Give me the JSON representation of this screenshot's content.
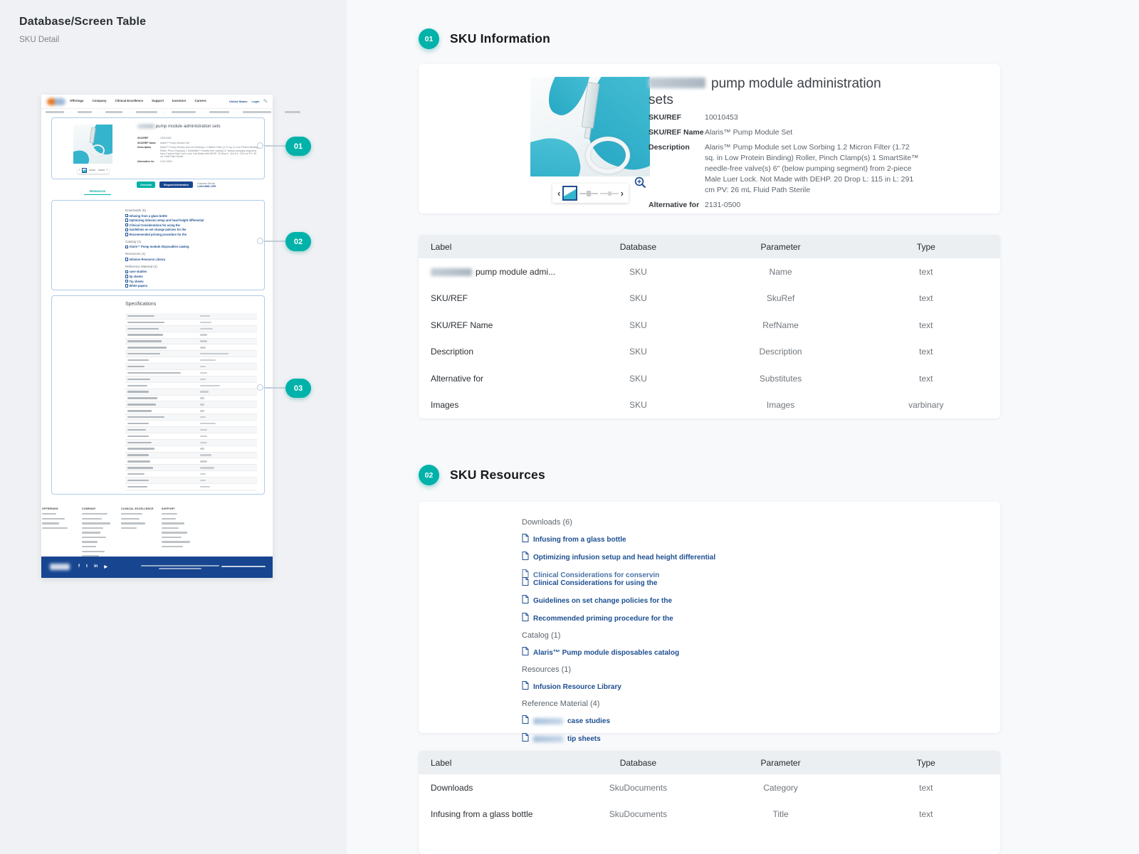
{
  "page": {
    "title": "Database/Screen Table",
    "subtitle": "SKU Detail"
  },
  "colors": {
    "teal": "#00b2a9",
    "link_blue": "#1d4f91",
    "footer_navy": "#17458f",
    "logo_orange": "#e87722",
    "table_header_bg": "#eceff2"
  },
  "callouts": [
    "01",
    "02",
    "03"
  ],
  "sections": [
    {
      "num": "01",
      "title": "SKU Information"
    },
    {
      "num": "02",
      "title": "SKU Resources"
    }
  ],
  "product": {
    "title_rest": "pump module administration sets",
    "fields": [
      {
        "label": "SKU/REF",
        "value": "10010453"
      },
      {
        "label": "SKU/REF Name",
        "value": "Alaris™ Pump Module Set"
      },
      {
        "label": "Description",
        "value": "Alaris™ Pump Module set Low Sorbing 1.2 Micron Filter (1.72 sq. in Low Protein Binding) Roller, Pinch Clamp(s) 1 SmartSite™ needle-free valve(s) 6\" (below pumping segment) from 2-piece Male Luer Lock. Not Made with DEHP. 20 Drop L: 115 in L: 291 cm PV: 26 mL Fluid Path Sterile"
      },
      {
        "label": "Alternative for",
        "value": "2131-0500"
      }
    ]
  },
  "table1": {
    "headers": [
      "Label",
      "Database",
      "Parameter",
      "Type"
    ],
    "rows": [
      {
        "label": "pump module admi...",
        "redacted": true,
        "database": "SKU",
        "parameter": "Name",
        "type": "text"
      },
      {
        "label": "SKU/REF",
        "database": "SKU",
        "parameter": "SkuRef",
        "type": "text"
      },
      {
        "label": "SKU/REF Name",
        "database": "SKU",
        "parameter": "RefName",
        "type": "text"
      },
      {
        "label": "Description",
        "database": "SKU",
        "parameter": "Description",
        "type": "text"
      },
      {
        "label": "Alternative for",
        "database": "SKU",
        "parameter": "Substitutes",
        "type": "text"
      },
      {
        "label": "Images",
        "database": "SKU",
        "parameter": "Images",
        "type": "varbinary"
      }
    ]
  },
  "resources": {
    "groups": [
      {
        "heading": "Downloads (6)",
        "items": [
          {
            "text": "Infusing from a glass bottle"
          },
          {
            "text": "Optimizing infusion setup and head height differential"
          },
          {
            "text": "Clinical Considerations for conservin",
            "overlap_top": true
          },
          {
            "text": "Clinical Considerations for using the"
          },
          {
            "text": "Guidelines on set change policies for the"
          },
          {
            "text": "Recommended priming procedure for the"
          }
        ]
      },
      {
        "heading": "Catalog (1)",
        "items": [
          {
            "text": "Alaris™ Pump module disposables catalog"
          }
        ]
      },
      {
        "heading": "Resources (1)",
        "items": [
          {
            "text": "Infusion Resource Library"
          }
        ]
      },
      {
        "heading": "Reference Material (4)",
        "items": [
          {
            "text": "case studies",
            "redacted_prefix": true
          },
          {
            "text": "tip sheets",
            "redacted_prefix": true
          },
          {
            "text": "Tip sheets"
          },
          {
            "text": "White papers"
          }
        ]
      }
    ]
  },
  "table2": {
    "headers": [
      "Label",
      "Database",
      "Parameter",
      "Type"
    ],
    "rows": [
      {
        "label": "Downloads",
        "database": "SkuDocuments",
        "parameter": "Category",
        "type": "text"
      },
      {
        "label": "Infusing from a glass bottle",
        "database": "SkuDocuments",
        "parameter": "Title",
        "type": "text"
      }
    ]
  },
  "thumbnail": {
    "nav": [
      "Offerings",
      "Company",
      "Clinical Excellence",
      "Support",
      "Investors",
      "Careers"
    ],
    "utility": [
      "United States",
      "Login"
    ],
    "breadcrumb_count": 8,
    "buttons": [
      "Overview",
      "Request Information"
    ],
    "customer_service": [
      "Customer Service",
      "1-844-8BD-LIFE"
    ],
    "tab": "Resources",
    "specs_title": "Specifications",
    "spec_row_count": 28,
    "footer_columns": [
      {
        "heading": "OFFERINGS",
        "links": 4
      },
      {
        "heading": "COMPANY",
        "links": 10
      },
      {
        "heading": "CLINICAL EXCELLENCE",
        "links": 4
      },
      {
        "heading": "SUPPORT",
        "links": 8
      }
    ],
    "social_icons": [
      "facebook-icon",
      "twitter-icon",
      "linkedin-icon",
      "youtube-icon"
    ]
  }
}
